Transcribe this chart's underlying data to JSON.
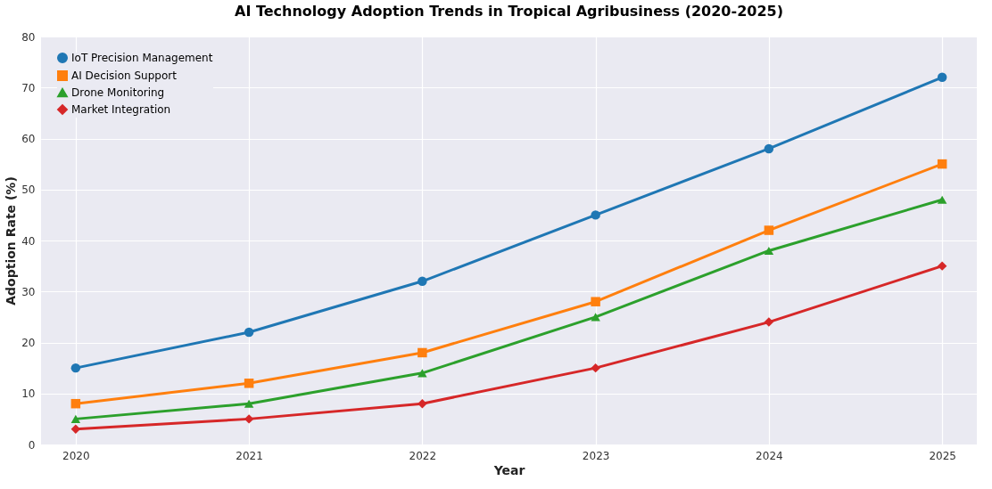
{
  "chart_data": {
    "type": "line",
    "title": "AI Technology Adoption Trends in Tropical Agribusiness (2020-2025)",
    "xlabel": "Year",
    "ylabel": "Adoption Rate (%)",
    "x": [
      2020,
      2021,
      2022,
      2023,
      2024,
      2025
    ],
    "series": [
      {
        "name": "IoT Precision Management",
        "color": "#1f77b4",
        "marker": "circle",
        "values": [
          15,
          22,
          32,
          45,
          58,
          72
        ]
      },
      {
        "name": "AI Decision Support",
        "color": "#ff7f0e",
        "marker": "square",
        "values": [
          8,
          12,
          18,
          28,
          42,
          55
        ]
      },
      {
        "name": "Drone Monitoring",
        "color": "#2ca02c",
        "marker": "triangle",
        "values": [
          5,
          8,
          14,
          25,
          38,
          48
        ]
      },
      {
        "name": "Market Integration",
        "color": "#d62728",
        "marker": "diamond",
        "values": [
          3,
          5,
          8,
          15,
          24,
          35
        ]
      }
    ],
    "xlim": [
      2019.8,
      2025.2
    ],
    "xticks": [
      2020,
      2021,
      2022,
      2023,
      2024,
      2025
    ],
    "ylim": [
      0,
      80
    ],
    "yticks": [
      0,
      10,
      20,
      30,
      40,
      50,
      60,
      70,
      80
    ],
    "grid": true,
    "legend": "top left",
    "line_style": "solid"
  }
}
